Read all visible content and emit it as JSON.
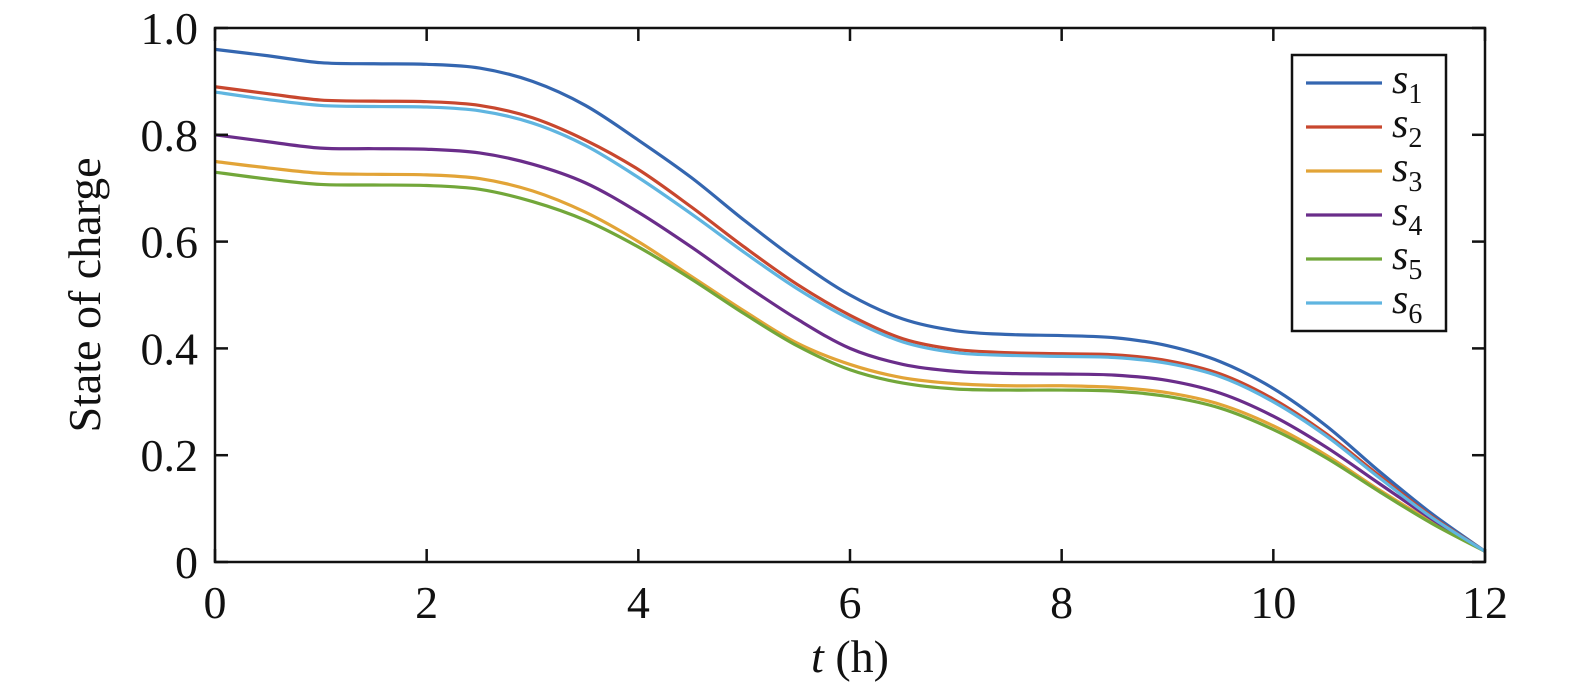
{
  "chart_data": {
    "type": "line",
    "xlabel": {
      "var": "t",
      "unit": " (h)"
    },
    "ylabel": "State of charge",
    "xlim": [
      0,
      12
    ],
    "ylim": [
      0,
      1.0
    ],
    "xticks": [
      0,
      2,
      4,
      6,
      8,
      10,
      12
    ],
    "xtick_labels": [
      "0",
      "2",
      "4",
      "6",
      "8",
      "10",
      "12"
    ],
    "yticks": [
      0,
      0.2,
      0.4,
      0.6,
      0.8,
      1.0
    ],
    "ytick_labels": [
      "0",
      "0.2",
      "0.4",
      "0.6",
      "0.8",
      "1.0"
    ],
    "grid": false,
    "legend_position": "top-right",
    "x": [
      0,
      0.5,
      1,
      1.5,
      2,
      2.5,
      3,
      3.5,
      4,
      4.5,
      5,
      5.5,
      6,
      6.5,
      7,
      7.5,
      8,
      8.5,
      9,
      9.5,
      10,
      10.5,
      11,
      11.5,
      12
    ],
    "series": [
      {
        "name": "s",
        "sub": "1",
        "color": "#3466b0",
        "values": [
          0.96,
          0.948,
          0.935,
          0.933,
          0.932,
          0.925,
          0.9,
          0.855,
          0.79,
          0.72,
          0.64,
          0.565,
          0.5,
          0.455,
          0.433,
          0.426,
          0.424,
          0.42,
          0.405,
          0.375,
          0.325,
          0.255,
          0.17,
          0.09,
          0.02
        ]
      },
      {
        "name": "s",
        "sub": "2",
        "color": "#c8472e",
        "values": [
          0.89,
          0.877,
          0.865,
          0.863,
          0.862,
          0.855,
          0.832,
          0.79,
          0.735,
          0.665,
          0.59,
          0.52,
          0.462,
          0.418,
          0.398,
          0.392,
          0.39,
          0.388,
          0.377,
          0.352,
          0.305,
          0.24,
          0.162,
          0.085,
          0.02
        ]
      },
      {
        "name": "s",
        "sub": "3",
        "color": "#e2a437",
        "values": [
          0.75,
          0.738,
          0.728,
          0.726,
          0.725,
          0.718,
          0.695,
          0.655,
          0.6,
          0.535,
          0.47,
          0.41,
          0.37,
          0.345,
          0.334,
          0.33,
          0.33,
          0.327,
          0.317,
          0.295,
          0.255,
          0.2,
          0.135,
          0.075,
          0.02
        ]
      },
      {
        "name": "s",
        "sub": "4",
        "color": "#6a2d8a",
        "values": [
          0.8,
          0.787,
          0.775,
          0.774,
          0.773,
          0.766,
          0.745,
          0.71,
          0.655,
          0.59,
          0.52,
          0.455,
          0.4,
          0.37,
          0.357,
          0.353,
          0.352,
          0.35,
          0.34,
          0.316,
          0.273,
          0.215,
          0.147,
          0.08,
          0.02
        ]
      },
      {
        "name": "s",
        "sub": "5",
        "color": "#72a73a",
        "values": [
          0.73,
          0.717,
          0.707,
          0.706,
          0.705,
          0.698,
          0.675,
          0.64,
          0.59,
          0.53,
          0.465,
          0.405,
          0.36,
          0.335,
          0.324,
          0.322,
          0.322,
          0.32,
          0.31,
          0.288,
          0.248,
          0.195,
          0.132,
          0.072,
          0.02
        ]
      },
      {
        "name": "s",
        "sub": "6",
        "color": "#5fb5e0",
        "values": [
          0.88,
          0.866,
          0.855,
          0.853,
          0.852,
          0.845,
          0.822,
          0.78,
          0.72,
          0.652,
          0.58,
          0.512,
          0.455,
          0.412,
          0.392,
          0.387,
          0.385,
          0.383,
          0.372,
          0.347,
          0.3,
          0.236,
          0.158,
          0.083,
          0.02
        ]
      }
    ]
  }
}
